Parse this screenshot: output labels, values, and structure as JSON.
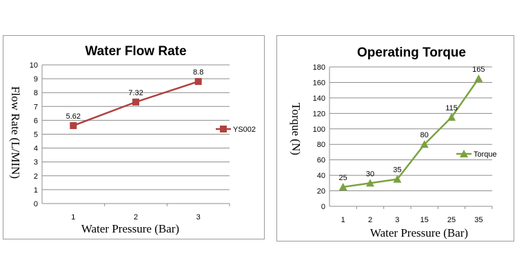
{
  "chart_data": [
    {
      "type": "line",
      "title": "Water Flow Rate",
      "xlabel": "Water  Pressure   (Bar)",
      "ylabel": "Flow   Rate   (L/MIN)",
      "categories": [
        "1",
        "2",
        "3"
      ],
      "series": [
        {
          "name": "YS002",
          "values": [
            5.62,
            7.32,
            8.8
          ],
          "labels": [
            "5.62",
            "7.32",
            "8.8"
          ],
          "color": "#b0413e",
          "marker": "square"
        }
      ],
      "ylim": [
        0,
        10
      ],
      "yticks": [
        "0",
        "1",
        "2",
        "3",
        "4",
        "5",
        "6",
        "7",
        "8",
        "9",
        "10"
      ],
      "grid": true,
      "legend": "right"
    },
    {
      "type": "line",
      "title": "Operating Torque",
      "xlabel": "Water  Pressure   (Bar)",
      "ylabel": "Torque     (N)",
      "categories": [
        "1",
        "2",
        "3",
        "15",
        "25",
        "35"
      ],
      "series": [
        {
          "name": "Torque",
          "values": [
            25,
            30,
            35,
            80,
            115,
            165
          ],
          "labels": [
            "25",
            "30",
            "35",
            "80",
            "115",
            "165"
          ],
          "color": "#7aa23f",
          "marker": "triangle"
        }
      ],
      "ylim": [
        0,
        180
      ],
      "yticks": [
        "0",
        "20",
        "40",
        "60",
        "80",
        "100",
        "120",
        "140",
        "160",
        "180"
      ],
      "grid": true,
      "legend": "right"
    }
  ]
}
